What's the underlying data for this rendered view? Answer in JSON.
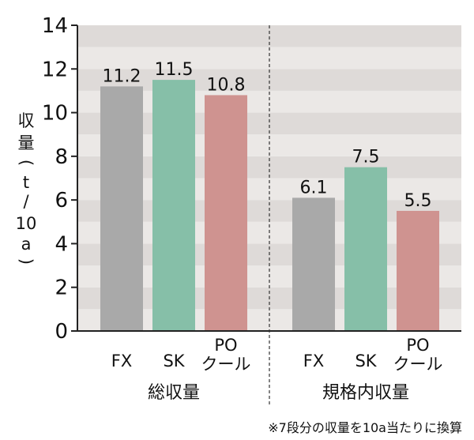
{
  "chart_data": {
    "type": "bar",
    "ylabel_chars": [
      "収",
      "量",
      "(",
      "t",
      "/",
      "10",
      "a",
      ")"
    ],
    "ylim": [
      0,
      14
    ],
    "yticks": [
      "0",
      "2",
      "4",
      "6",
      "8",
      "10",
      "12",
      "14"
    ],
    "groups": [
      {
        "label": "総収量",
        "bars": [
          {
            "category": "FX",
            "value": 11.2,
            "value_label": "11.2",
            "color": "#a9a9a9"
          },
          {
            "category": "SK",
            "value": 11.5,
            "value_label": "11.5",
            "color": "#86bfa8"
          },
          {
            "category": "PO\nクール",
            "value": 10.8,
            "value_label": "10.8",
            "color": "#cf9390"
          }
        ]
      },
      {
        "label": "規格内収量",
        "bars": [
          {
            "category": "FX",
            "value": 6.1,
            "value_label": "6.1",
            "color": "#a9a9a9"
          },
          {
            "category": "SK",
            "value": 7.5,
            "value_label": "7.5",
            "color": "#86bfa8"
          },
          {
            "category": "PO\nクール",
            "value": 5.5,
            "value_label": "5.5",
            "color": "#cf9390"
          }
        ]
      }
    ],
    "band_colors": [
      "#ebe8e6",
      "#dedad8"
    ],
    "footnote": "※7段分の収量を10a当たりに換算"
  }
}
